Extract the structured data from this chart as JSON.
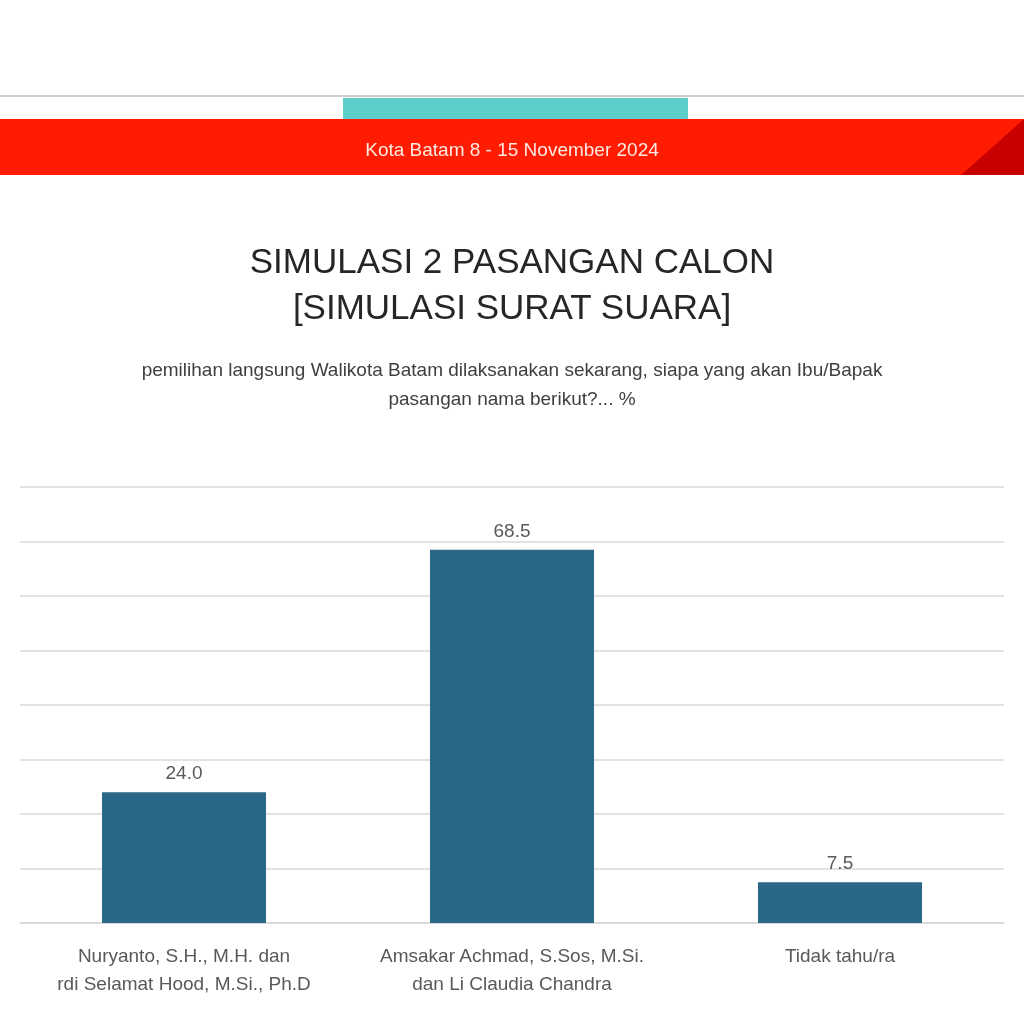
{
  "chart_data": {
    "type": "bar",
    "title": "SIMULASI 2 PASANGAN CALON\n[SIMULASI SURAT SUARA]",
    "subtitle": "Kota Batam 8 - 15 November 2024",
    "annotations": [
      "pemilihan langsung Walikota Batam dilaksanakan sekarang, siapa yang akan Ibu/Bapak\npasangan nama berikut?... %"
    ],
    "categories": [
      "Nuryanto, S.H., M.H. dan\nrdi Selamat Hood, M.Si., Ph.D",
      "Amsakar Achmad, S.Sos, M.Si.\ndan Li Claudia Chandra",
      "Tidak tahu/ra"
    ],
    "values": [
      24,
      68.5,
      7.5
    ],
    "value_labels": [
      "24.0",
      "68.5",
      "7.5"
    ],
    "color": "#2b6786",
    "ylim": [
      0,
      80
    ],
    "yticks": [
      {
        "value": 0,
        "label": null
      },
      {
        "value": 10,
        "label": null
      },
      {
        "value": 20,
        "label": null
      },
      {
        "value": 30,
        "label": null
      },
      {
        "value": 40,
        "label": null
      },
      {
        "value": 50,
        "label": null
      },
      {
        "value": 60,
        "label": null
      },
      {
        "value": 70,
        "label": null
      },
      {
        "value": 80,
        "label": null
      }
    ],
    "grid": "y",
    "tick_labels": "x"
  }
}
